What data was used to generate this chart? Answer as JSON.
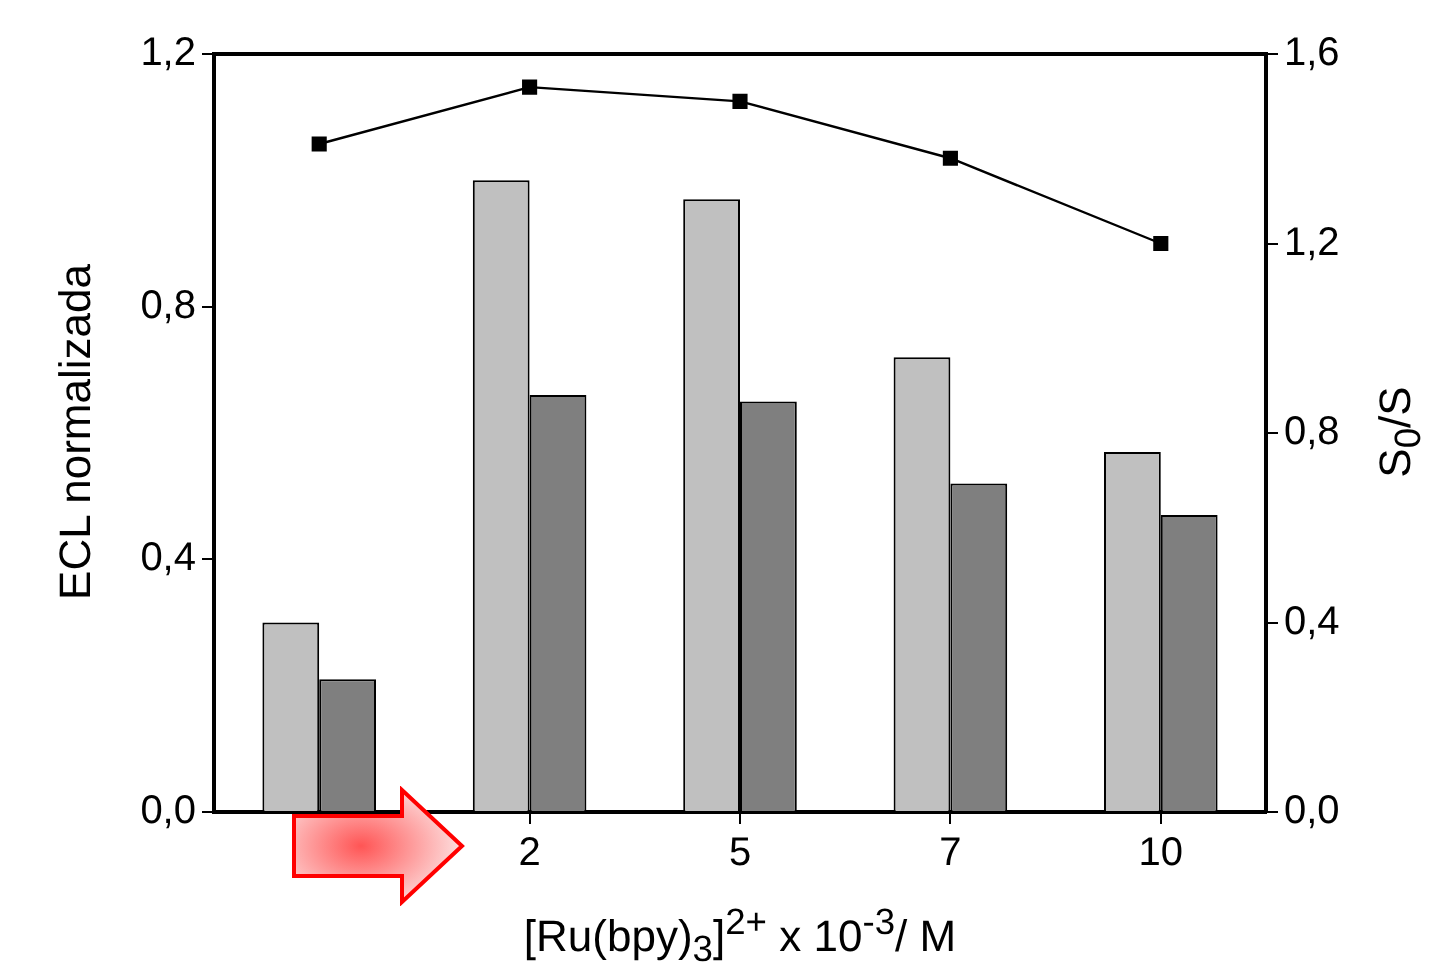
{
  "chart_data": {
    "type": "bar",
    "xlabel": "[Ru(bpy)$_{3}$]$^{2+}$ x 10$^{-3}$/ M",
    "ylabel": "ECL normalizada",
    "y2label": "S$_{0}$/S",
    "categories": [
      null,
      "2",
      "5",
      "7",
      "10"
    ],
    "series": [
      {
        "color": "#c0c0c0",
        "values": [
          0.3,
          1.0,
          0.97,
          0.72,
          0.57
        ]
      },
      {
        "color": "#7f7f7f",
        "values": [
          0.21,
          0.66,
          0.65,
          0.52,
          0.47
        ]
      },
      {
        "type": "line",
        "axis": "y2",
        "color": "#000000",
        "values": [
          1.41,
          1.53,
          1.5,
          1.38,
          1.2
        ]
      }
    ],
    "ylim": [
      0,
      1.2
    ],
    "yticks": [
      {
        "value": 0,
        "label": "0,0"
      },
      {
        "value": 0.4,
        "label": "0,4"
      },
      {
        "value": 0.8,
        "label": "0,8"
      },
      {
        "value": 1.2,
        "label": "1,2"
      }
    ],
    "y2lim": [
      0,
      1.6
    ],
    "y2ticks": [
      {
        "value": 0,
        "label": "0,0"
      },
      {
        "value": 0.4,
        "label": "0,4"
      },
      {
        "value": 0.8,
        "label": "0,8"
      },
      {
        "value": 1.2,
        "label": "1,2"
      },
      {
        "value": 1.6,
        "label": "1,6"
      }
    ],
    "marker": "square",
    "grid": false,
    "legend": false
  }
}
